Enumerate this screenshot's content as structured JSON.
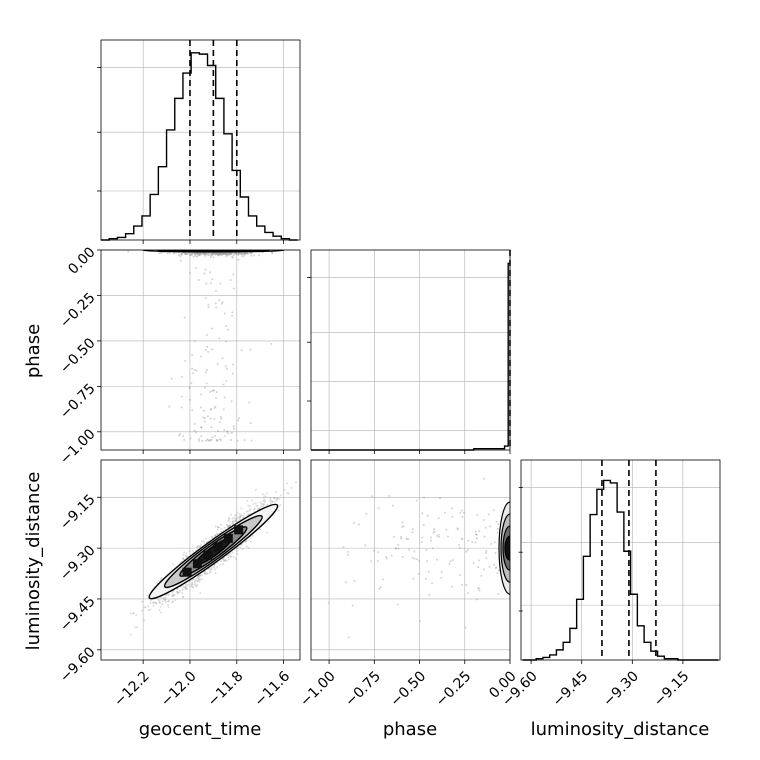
{
  "chart_data": {
    "type": "corner",
    "parameters": [
      "geocent_time",
      "phase",
      "luminosity_distance"
    ],
    "axis_labels": {
      "geocent_time": "geocent_time",
      "phase": "phase",
      "luminosity_distance": "luminosity_distance"
    },
    "ranges": {
      "geocent_time": [
        -12.38,
        -11.53
      ],
      "phase": [
        -1.1,
        0.0
      ],
      "luminosity_distance": [
        -9.63,
        -9.04
      ]
    },
    "ticks": {
      "geocent_time": [
        -12.2,
        -12.0,
        -11.8,
        -11.6
      ],
      "phase": [
        -1.0,
        -0.75,
        -0.5,
        -0.25,
        0.0
      ],
      "luminosity_distance": [
        -9.6,
        -9.45,
        -9.3,
        -9.15
      ]
    },
    "tick_labels": {
      "geocent_time": [
        "−12.2",
        "−12.0",
        "−11.8",
        "−11.6"
      ],
      "phase": [
        "−1.00",
        "−0.75",
        "−0.50",
        "−0.25",
        "0.00"
      ],
      "luminosity_distance": [
        "−9.60",
        "−9.45",
        "−9.30",
        "−9.15"
      ]
    },
    "quantiles": {
      "geocent_time": [
        -12.0,
        -11.9,
        -11.8
      ],
      "phase": [
        0.0
      ],
      "luminosity_distance": [
        -9.39,
        -9.31,
        -9.23
      ]
    },
    "histograms": {
      "geocent_time": {
        "edges": [
          -12.38,
          -12.345,
          -12.31,
          -12.275,
          -12.24,
          -12.205,
          -12.17,
          -12.135,
          -12.1,
          -12.065,
          -12.03,
          -11.995,
          -11.96,
          -11.925,
          -11.89,
          -11.855,
          -11.82,
          -11.785,
          -11.75,
          -11.715,
          -11.68,
          -11.645,
          -11.61,
          -11.575,
          -11.54
        ],
        "counts": [
          0,
          1,
          2,
          5,
          11,
          19,
          36,
          58,
          87,
          112,
          132,
          148,
          147,
          138,
          112,
          84,
          55,
          34,
          19,
          11,
          6,
          3,
          1,
          0
        ],
        "ymax": 155
      },
      "phase": {
        "edges": [
          -1.1,
          -0.2,
          -0.03,
          -0.01,
          0.0
        ],
        "counts": [
          0,
          1,
          3,
          141
        ],
        "ymax": 148
      },
      "luminosity_distance": {
        "edges": [
          -9.625,
          -9.605,
          -9.585,
          -9.565,
          -9.545,
          -9.525,
          -9.505,
          -9.485,
          -9.465,
          -9.445,
          -9.425,
          -9.405,
          -9.385,
          -9.365,
          -9.345,
          -9.325,
          -9.305,
          -9.285,
          -9.265,
          -9.245,
          -9.225,
          -9.205,
          -9.185,
          -9.165,
          -9.145,
          -9.125,
          -9.105,
          -9.085,
          -9.065,
          -9.045
        ],
        "counts": [
          0,
          0,
          1,
          2,
          4,
          8,
          14,
          25,
          48,
          82,
          115,
          135,
          142,
          140,
          117,
          86,
          52,
          27,
          14,
          7,
          3,
          1,
          1,
          0,
          0,
          0,
          0,
          0,
          0
        ],
        "ymax": 155
      }
    },
    "joint": [
      {
        "x": "geocent_time",
        "y": "phase",
        "mean": [
          -11.9,
          -0.002
        ],
        "sigma": [
          0.06,
          0.01
        ],
        "outliers_y_range": [
          -1.05,
          -0.05
        ],
        "contours": [
          [
            0.5,
            0.14,
            0.0032
          ],
          [
            1.0,
            0.2,
            0.0048
          ],
          [
            1.5,
            0.24,
            0.0066
          ],
          [
            2.0,
            0.3,
            0.0082
          ]
        ]
      },
      {
        "x": "geocent_time",
        "y": "luminosity_distance",
        "mean": [
          -11.9,
          -9.31
        ],
        "sigma": [
          0.11,
          0.065
        ],
        "correlation": 0.93,
        "contours": [
          [
            0.5,
            0.07,
            0.033
          ],
          [
            1.0,
            0.13,
            0.05
          ],
          [
            1.5,
            0.19,
            0.064
          ],
          [
            2.0,
            0.25,
            0.078
          ]
        ]
      },
      {
        "x": "phase",
        "y": "luminosity_distance",
        "mean": [
          -0.002,
          -9.3
        ],
        "sigma": [
          0.01,
          0.07
        ],
        "outliers_x_range": [
          -1.05,
          -0.05
        ]
      }
    ],
    "grid": true,
    "colors": {
      "line": "#000000",
      "points": "#9e9e9e",
      "grid": "#b0b0b0"
    }
  }
}
